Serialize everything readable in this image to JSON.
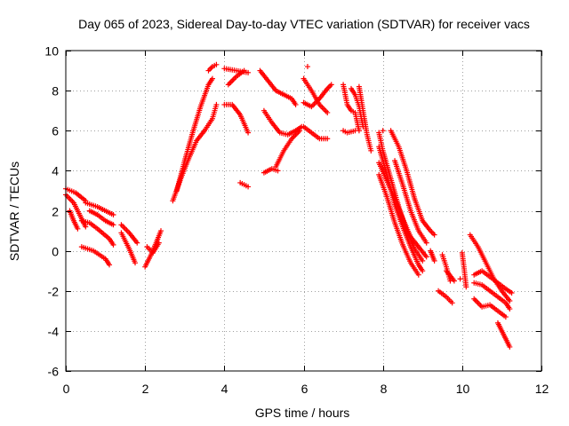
{
  "chart_data": {
    "type": "scatter",
    "title": "Day 065 of 2023, Sidereal Day-to-day VTEC variation (SDTVAR) for receiver vacs",
    "xlabel": "GPS time / hours",
    "ylabel": "SDTVAR / TECUs",
    "xlim": [
      0,
      12
    ],
    "ylim": [
      -6,
      10
    ],
    "xticks": [
      "0",
      "2",
      "4",
      "6",
      "8",
      "10",
      "12"
    ],
    "yticks": [
      "-6",
      "-4",
      "-2",
      "0",
      "2",
      "4",
      "6",
      "8",
      "10"
    ],
    "grid": true,
    "marker": "+",
    "series": [
      {
        "name": "SDTVAR",
        "color": "#ff0000",
        "tracks": [
          [
            [
              0.0,
              3.1
            ],
            [
              0.25,
              2.9
            ],
            [
              0.5,
              2.5
            ]
          ],
          [
            [
              0.0,
              2.8
            ],
            [
              0.2,
              2.4
            ],
            [
              0.4,
              1.6
            ],
            [
              0.5,
              1.2
            ]
          ],
          [
            [
              0.1,
              2.0
            ],
            [
              0.2,
              1.5
            ],
            [
              0.3,
              1.1
            ]
          ],
          [
            [
              0.5,
              2.4
            ],
            [
              0.8,
              2.2
            ],
            [
              1.2,
              1.8
            ]
          ],
          [
            [
              0.4,
              1.5
            ],
            [
              0.6,
              1.4
            ],
            [
              0.8,
              1.1
            ],
            [
              1.1,
              0.6
            ],
            [
              1.2,
              0.3
            ]
          ],
          [
            [
              0.6,
              2.0
            ],
            [
              0.8,
              1.8
            ],
            [
              1.0,
              1.5
            ],
            [
              1.2,
              1.3
            ]
          ],
          [
            [
              0.4,
              0.2
            ],
            [
              0.7,
              0.0
            ],
            [
              1.0,
              -0.4
            ],
            [
              1.1,
              -0.7
            ]
          ],
          [
            [
              1.4,
              1.3
            ],
            [
              1.6,
              0.9
            ],
            [
              1.8,
              0.4
            ]
          ],
          [
            [
              1.4,
              0.9
            ],
            [
              1.6,
              0.1
            ],
            [
              1.75,
              -0.6
            ]
          ],
          [
            [
              2.0,
              -0.8
            ],
            [
              2.15,
              -0.2
            ],
            [
              2.3,
              0.5
            ],
            [
              2.4,
              1.0
            ]
          ],
          [
            [
              2.05,
              0.2
            ],
            [
              2.2,
              -0.1
            ],
            [
              2.35,
              0.4
            ]
          ],
          [
            [
              2.7,
              2.5
            ],
            [
              2.9,
              3.6
            ],
            [
              3.1,
              4.6
            ],
            [
              3.3,
              5.5
            ],
            [
              3.5,
              6.0
            ],
            [
              3.7,
              6.6
            ],
            [
              3.8,
              7.3
            ]
          ],
          [
            [
              2.8,
              3.0
            ],
            [
              3.0,
              4.5
            ],
            [
              3.2,
              5.9
            ],
            [
              3.4,
              7.2
            ],
            [
              3.6,
              8.3
            ],
            [
              3.7,
              8.6
            ]
          ],
          [
            [
              3.6,
              9.0
            ],
            [
              3.7,
              9.2
            ],
            [
              3.8,
              9.3
            ]
          ],
          [
            [
              4.0,
              9.1
            ],
            [
              4.3,
              9.0
            ],
            [
              4.6,
              8.9
            ]
          ],
          [
            [
              4.1,
              8.3
            ],
            [
              4.3,
              8.7
            ],
            [
              4.5,
              9.0
            ]
          ],
          [
            [
              4.0,
              7.3
            ],
            [
              4.2,
              7.3
            ],
            [
              4.4,
              6.8
            ],
            [
              4.6,
              5.9
            ]
          ],
          [
            [
              4.4,
              3.4
            ],
            [
              4.5,
              3.3
            ],
            [
              4.6,
              3.2
            ]
          ],
          [
            [
              4.9,
              9.0
            ],
            [
              5.1,
              8.5
            ],
            [
              5.3,
              8.0
            ],
            [
              5.5,
              7.8
            ],
            [
              5.7,
              7.6
            ],
            [
              5.8,
              7.3
            ]
          ],
          [
            [
              5.0,
              7.0
            ],
            [
              5.2,
              6.4
            ],
            [
              5.4,
              5.9
            ],
            [
              5.6,
              5.8
            ],
            [
              5.8,
              6.0
            ],
            [
              5.95,
              6.2
            ]
          ],
          [
            [
              5.0,
              3.9
            ],
            [
              5.2,
              4.1
            ],
            [
              5.35,
              4.0
            ]
          ],
          [
            [
              5.3,
              4.2
            ],
            [
              5.5,
              5.0
            ],
            [
              5.7,
              5.6
            ],
            [
              5.9,
              6.0
            ]
          ],
          [
            [
              6.1,
              9.2
            ]
          ],
          [
            [
              6.0,
              8.6
            ],
            [
              6.2,
              8.0
            ],
            [
              6.4,
              7.3
            ],
            [
              6.6,
              6.9
            ]
          ],
          [
            [
              6.0,
              7.4
            ],
            [
              6.2,
              7.2
            ],
            [
              6.4,
              7.6
            ],
            [
              6.6,
              8.1
            ],
            [
              6.7,
              8.3
            ]
          ],
          [
            [
              6.0,
              6.2
            ],
            [
              6.2,
              5.9
            ],
            [
              6.4,
              5.6
            ],
            [
              6.6,
              5.6
            ]
          ],
          [
            [
              7.0,
              8.3
            ],
            [
              7.1,
              7.3
            ],
            [
              7.2,
              7.0
            ],
            [
              7.3,
              6.9
            ],
            [
              7.4,
              6.0
            ]
          ],
          [
            [
              7.0,
              6.0
            ],
            [
              7.1,
              5.9
            ],
            [
              7.3,
              6.0
            ]
          ],
          [
            [
              7.2,
              8.1
            ],
            [
              7.3,
              7.8
            ],
            [
              7.4,
              7.2
            ],
            [
              7.5,
              6.2
            ]
          ],
          [
            [
              7.4,
              8.2
            ],
            [
              7.5,
              7.0
            ],
            [
              7.6,
              5.8
            ],
            [
              7.7,
              5.0
            ]
          ],
          [
            [
              7.9,
              5.9
            ],
            [
              8.0,
              5.0
            ],
            [
              8.2,
              3.6
            ],
            [
              8.4,
              2.2
            ],
            [
              8.6,
              1.0
            ],
            [
              8.8,
              0.1
            ],
            [
              9.0,
              -0.5
            ]
          ],
          [
            [
              7.9,
              5.2
            ],
            [
              8.1,
              3.8
            ],
            [
              8.3,
              2.3
            ],
            [
              8.5,
              1.2
            ],
            [
              8.7,
              0.2
            ],
            [
              8.9,
              -0.7
            ],
            [
              9.0,
              -1.0
            ]
          ],
          [
            [
              7.9,
              4.4
            ],
            [
              8.1,
              3.5
            ],
            [
              8.3,
              2.6
            ],
            [
              8.5,
              1.6
            ],
            [
              8.7,
              0.7
            ],
            [
              8.9,
              0.2
            ],
            [
              9.1,
              -0.3
            ]
          ],
          [
            [
              7.9,
              3.8
            ],
            [
              8.1,
              2.7
            ],
            [
              8.3,
              1.4
            ],
            [
              8.5,
              0.3
            ],
            [
              8.7,
              -0.6
            ],
            [
              8.9,
              -1.2
            ]
          ],
          [
            [
              8.0,
              6.0
            ]
          ],
          [
            [
              8.2,
              6.0
            ],
            [
              8.4,
              5.2
            ],
            [
              8.6,
              4.0
            ],
            [
              8.8,
              2.6
            ],
            [
              9.0,
              1.5
            ],
            [
              9.2,
              1.0
            ],
            [
              9.3,
              0.8
            ]
          ],
          [
            [
              8.3,
              4.5
            ],
            [
              8.5,
              3.3
            ],
            [
              8.7,
              2.0
            ],
            [
              8.9,
              1.0
            ],
            [
              9.1,
              0.4
            ]
          ],
          [
            [
              9.2,
              0.0
            ],
            [
              9.3,
              -0.5
            ]
          ],
          [
            [
              9.5,
              -0.2
            ],
            [
              9.6,
              -0.8
            ],
            [
              9.7,
              -1.5
            ]
          ],
          [
            [
              9.4,
              -2.0
            ],
            [
              9.6,
              -2.3
            ],
            [
              9.75,
              -2.6
            ]
          ],
          [
            [
              9.6,
              -1.0
            ],
            [
              9.8,
              -1.5
            ]
          ],
          [
            [
              10.0,
              -0.1
            ],
            [
              10.05,
              -0.9
            ],
            [
              10.1,
              -1.8
            ]
          ],
          [
            [
              9.95,
              -1.4
            ]
          ],
          [
            [
              10.2,
              0.8
            ],
            [
              10.4,
              0.2
            ],
            [
              10.6,
              -0.6
            ],
            [
              10.8,
              -1.4
            ],
            [
              11.0,
              -2.0
            ],
            [
              11.2,
              -2.5
            ]
          ],
          [
            [
              10.3,
              -1.2
            ],
            [
              10.5,
              -1.0
            ],
            [
              10.7,
              -1.3
            ],
            [
              10.9,
              -1.6
            ],
            [
              11.1,
              -1.9
            ],
            [
              11.25,
              -2.1
            ]
          ],
          [
            [
              10.3,
              -1.6
            ],
            [
              10.5,
              -1.7
            ],
            [
              10.7,
              -2.0
            ],
            [
              10.9,
              -2.3
            ],
            [
              11.1,
              -2.6
            ],
            [
              11.2,
              -2.9
            ]
          ],
          [
            [
              10.3,
              -2.4
            ],
            [
              10.5,
              -2.8
            ],
            [
              10.7,
              -2.7
            ],
            [
              10.9,
              -3.0
            ],
            [
              11.1,
              -3.3
            ]
          ],
          [
            [
              10.9,
              -3.6
            ],
            [
              11.0,
              -4.0
            ],
            [
              11.1,
              -4.4
            ],
            [
              11.2,
              -4.8
            ]
          ]
        ]
      }
    ]
  }
}
